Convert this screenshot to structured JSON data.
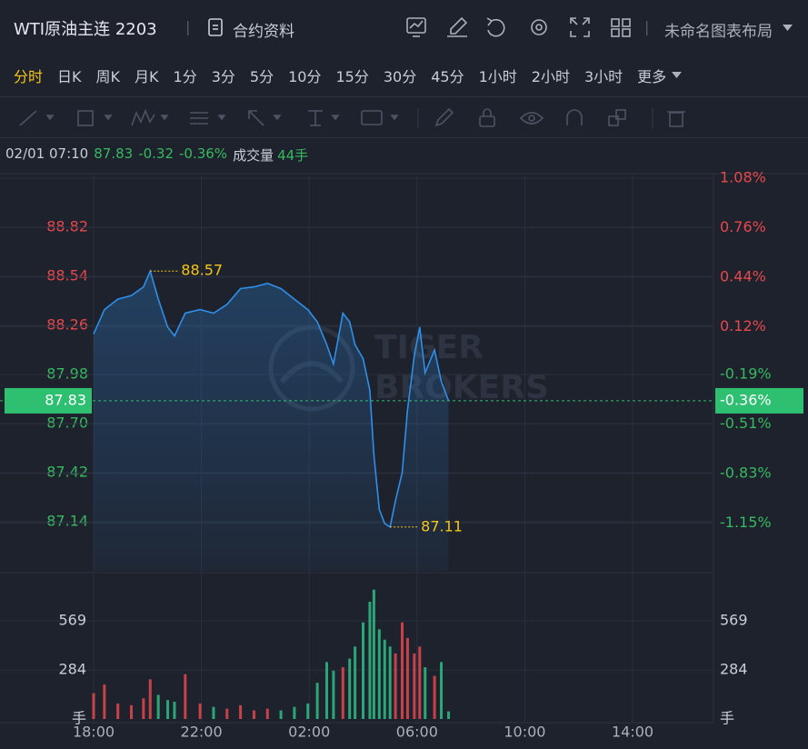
{
  "header": {
    "symbol": "WTI原油主连 2203",
    "contract_info": "合约资料",
    "layout_name": "未命名图表布局"
  },
  "intervals": {
    "items": [
      "分时",
      "日K",
      "周K",
      "月K",
      "1分",
      "3分",
      "5分",
      "10分",
      "15分",
      "30分",
      "45分",
      "1小时",
      "2小时",
      "3小时",
      "更多"
    ],
    "active": 0
  },
  "info": {
    "time": "02/01 07:10",
    "price": "87.83",
    "change": "-0.32",
    "change_pct": "-0.36%",
    "volume_label": "成交量",
    "volume": "44手"
  },
  "watermark": [
    "TIGER",
    "BROKERS"
  ],
  "chart_data": [
    {
      "type": "line",
      "color": "#2f8fe8",
      "up_color": "#e5484d",
      "down_color": "#36b95f",
      "annotation_color": "#f5c518",
      "last_color": "#2fbf71",
      "grid": true,
      "x": [
        0,
        0.4,
        0.9,
        1.4,
        1.85,
        2.1,
        2.4,
        2.75,
        3.0,
        3.4,
        3.95,
        4.45,
        4.95,
        5.45,
        5.95,
        6.45,
        6.95,
        7.45,
        7.95,
        8.3,
        8.65,
        8.9,
        9.25,
        9.5,
        9.7,
        10.0,
        10.25,
        10.4,
        10.6,
        10.8,
        11.0,
        11.2,
        11.45,
        11.65,
        11.9,
        12.1,
        12.3,
        12.65,
        12.9,
        13.17
      ],
      "y": [
        88.21,
        88.35,
        88.41,
        88.43,
        88.48,
        88.57,
        88.41,
        88.25,
        88.2,
        88.33,
        88.35,
        88.33,
        88.38,
        88.47,
        88.48,
        88.5,
        88.47,
        88.41,
        88.35,
        88.28,
        88.15,
        88.04,
        88.33,
        88.28,
        88.15,
        88.07,
        87.89,
        87.52,
        87.21,
        87.13,
        87.11,
        87.26,
        87.42,
        87.78,
        88.09,
        88.25,
        87.99,
        88.12,
        87.94,
        87.83
      ],
      "xlim": [
        0,
        23
      ],
      "xticks": [
        {
          "value": 0,
          "label": "18:00"
        },
        {
          "value": 4,
          "label": "22:00"
        },
        {
          "value": 8,
          "label": "02:00"
        },
        {
          "value": 12,
          "label": "06:00"
        },
        {
          "value": 16,
          "label": "10:00"
        },
        {
          "value": 20,
          "label": "14:00"
        }
      ],
      "ylim": [
        86.86,
        89.1
      ],
      "yticks": [
        88.82,
        88.54,
        88.26,
        87.98,
        {
          "value": 87.7,
          "label": "87.70"
        },
        87.42,
        87.14
      ],
      "y2lim": [
        -1.46,
        1.08
      ],
      "y2ticks": [
        {
          "value": 1.08,
          "label": "1.08%"
        },
        {
          "value": 0.76,
          "label": "0.76%"
        },
        {
          "value": 0.44,
          "label": "0.44%"
        },
        {
          "value": 0.12,
          "label": "0.12%"
        },
        {
          "value": -0.19,
          "label": "-0.19%"
        },
        {
          "value": -0.51,
          "label": "-0.51%"
        },
        {
          "value": -0.83,
          "label": "-0.83%"
        },
        {
          "value": -1.15,
          "label": "-1.15%"
        }
      ]
    },
    {
      "type": "bar",
      "x": [
        0,
        0.4,
        0.9,
        1.4,
        1.85,
        2.1,
        2.4,
        2.75,
        3.0,
        3.4,
        3.95,
        4.45,
        4.95,
        5.45,
        5.95,
        6.45,
        6.95,
        7.45,
        7.95,
        8.3,
        8.65,
        8.9,
        9.25,
        9.5,
        9.7,
        10.0,
        10.25,
        10.4,
        10.6,
        10.8,
        11.0,
        11.2,
        11.45,
        11.65,
        11.9,
        12.1,
        12.3,
        12.65,
        12.9,
        13.17
      ],
      "values": [
        150,
        200,
        90,
        80,
        120,
        230,
        140,
        110,
        100,
        260,
        90,
        70,
        60,
        80,
        50,
        60,
        50,
        70,
        90,
        210,
        330,
        280,
        300,
        350,
        420,
        560,
        680,
        750,
        520,
        460,
        420,
        380,
        560,
        470,
        380,
        420,
        300,
        250,
        330,
        44
      ],
      "colors": [
        "#e5484d",
        "#e5484d",
        "#e5484d",
        "#e5484d",
        "#e5484d",
        "#e5484d",
        "#2ebd85",
        "#2ebd85",
        "#2ebd85",
        "#e5484d",
        "#e5484d",
        "#2ebd85",
        "#e5484d",
        "#e5484d",
        "#e5484d",
        "#e5484d",
        "#2ebd85",
        "#2ebd85",
        "#2ebd85",
        "#2ebd85",
        "#2ebd85",
        "#2ebd85",
        "#e5484d",
        "#2ebd85",
        "#2ebd85",
        "#2ebd85",
        "#2ebd85",
        "#2ebd85",
        "#2ebd85",
        "#2ebd85",
        "#2ebd85",
        "#e5484d",
        "#e5484d",
        "#e5484d",
        "#e5484d",
        "#e5484d",
        "#2ebd85",
        "#e5484d",
        "#2ebd85",
        "#2ebd85"
      ],
      "xlim": [
        0,
        23
      ],
      "xticks": [
        {
          "value": 0,
          "label": "18:00"
        },
        {
          "value": 4,
          "label": "22:00"
        },
        {
          "value": 8,
          "label": "02:00"
        },
        {
          "value": 12,
          "label": "06:00"
        },
        {
          "value": 16,
          "label": "10:00"
        },
        {
          "value": 20,
          "label": "14:00"
        }
      ],
      "ylim": [
        0,
        838
      ],
      "yticks": [
        {
          "value": 0,
          "label": "手"
        },
        284,
        569
      ]
    }
  ]
}
